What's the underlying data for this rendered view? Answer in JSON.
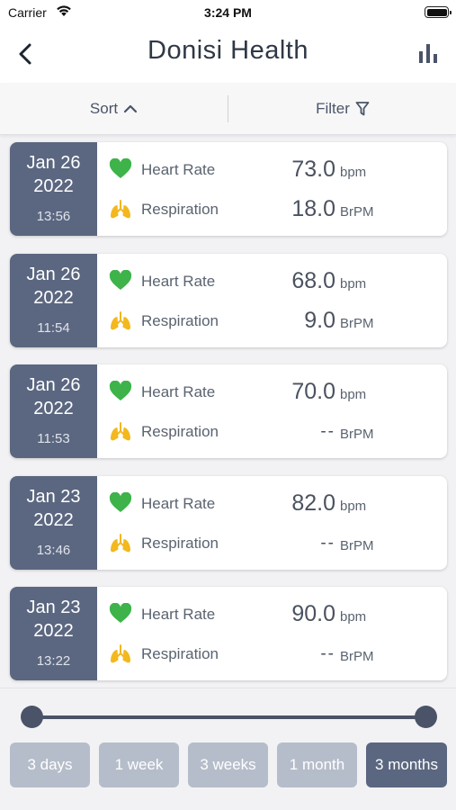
{
  "status_bar": {
    "carrier": "Carrier",
    "time": "3:24 PM"
  },
  "header": {
    "title": "Donisi Health",
    "back_icon": "chevron-left-icon",
    "chart_icon": "bar-chart-icon"
  },
  "toolbar": {
    "sort_label": "Sort",
    "filter_label": "Filter"
  },
  "records": [
    {
      "date": "Jan 26",
      "year": "2022",
      "time": "13:56",
      "heart_rate": {
        "label": "Heart Rate",
        "value": "73.0",
        "unit": "bpm"
      },
      "respiration": {
        "label": "Respiration",
        "value": "18.0",
        "unit": "BrPM"
      }
    },
    {
      "date": "Jan 26",
      "year": "2022",
      "time": "11:54",
      "heart_rate": {
        "label": "Heart Rate",
        "value": "68.0",
        "unit": "bpm"
      },
      "respiration": {
        "label": "Respiration",
        "value": "9.0",
        "unit": "BrPM"
      }
    },
    {
      "date": "Jan 26",
      "year": "2022",
      "time": "11:53",
      "heart_rate": {
        "label": "Heart Rate",
        "value": "70.0",
        "unit": "bpm"
      },
      "respiration": {
        "label": "Respiration",
        "value": "--",
        "unit": "BrPM"
      }
    },
    {
      "date": "Jan 23",
      "year": "2022",
      "time": "13:46",
      "heart_rate": {
        "label": "Heart Rate",
        "value": "82.0",
        "unit": "bpm"
      },
      "respiration": {
        "label": "Respiration",
        "value": "--",
        "unit": "BrPM"
      }
    },
    {
      "date": "Jan 23",
      "year": "2022",
      "time": "13:22",
      "heart_rate": {
        "label": "Heart Rate",
        "value": "90.0",
        "unit": "bpm"
      },
      "respiration": {
        "label": "Respiration",
        "value": "--",
        "unit": "BrPM"
      }
    }
  ],
  "range_slider": {
    "start": 0,
    "end": 1
  },
  "range_buttons": [
    {
      "label": "3 days",
      "active": false
    },
    {
      "label": "1 week",
      "active": false
    },
    {
      "label": "3 weeks",
      "active": false
    },
    {
      "label": "1 month",
      "active": false
    },
    {
      "label": "3 months",
      "active": true
    }
  ],
  "colors": {
    "accent": "#5b6780",
    "inactive_button": "#b6bdca",
    "heart": "#3db34a",
    "lungs": "#f2b81e"
  }
}
